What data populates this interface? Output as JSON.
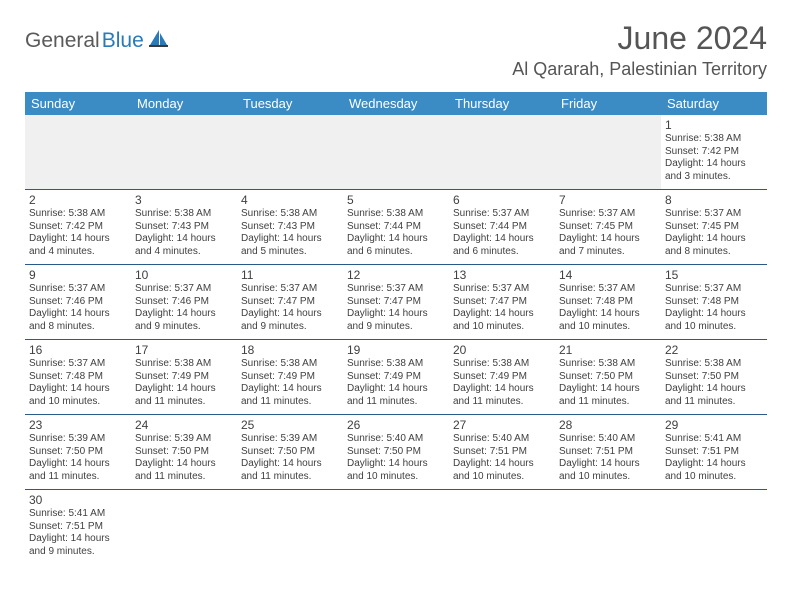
{
  "logo": {
    "general": "General",
    "blue": "Blue"
  },
  "title": "June 2024",
  "location": "Al Qararah, Palestinian Territory",
  "colors": {
    "header_bg": "#3b8bc4",
    "header_text": "#ffffff",
    "border": "#2a5a8a",
    "text": "#404040",
    "logo_gray": "#5a5a5a",
    "logo_blue": "#2a7ab8"
  },
  "days_of_week": [
    "Sunday",
    "Monday",
    "Tuesday",
    "Wednesday",
    "Thursday",
    "Friday",
    "Saturday"
  ],
  "weeks": [
    [
      null,
      null,
      null,
      null,
      null,
      null,
      {
        "n": "1",
        "sr": "Sunrise: 5:38 AM",
        "ss": "Sunset: 7:42 PM",
        "dl": "Daylight: 14 hours and 3 minutes."
      }
    ],
    [
      {
        "n": "2",
        "sr": "Sunrise: 5:38 AM",
        "ss": "Sunset: 7:42 PM",
        "dl": "Daylight: 14 hours and 4 minutes."
      },
      {
        "n": "3",
        "sr": "Sunrise: 5:38 AM",
        "ss": "Sunset: 7:43 PM",
        "dl": "Daylight: 14 hours and 4 minutes."
      },
      {
        "n": "4",
        "sr": "Sunrise: 5:38 AM",
        "ss": "Sunset: 7:43 PM",
        "dl": "Daylight: 14 hours and 5 minutes."
      },
      {
        "n": "5",
        "sr": "Sunrise: 5:38 AM",
        "ss": "Sunset: 7:44 PM",
        "dl": "Daylight: 14 hours and 6 minutes."
      },
      {
        "n": "6",
        "sr": "Sunrise: 5:37 AM",
        "ss": "Sunset: 7:44 PM",
        "dl": "Daylight: 14 hours and 6 minutes."
      },
      {
        "n": "7",
        "sr": "Sunrise: 5:37 AM",
        "ss": "Sunset: 7:45 PM",
        "dl": "Daylight: 14 hours and 7 minutes."
      },
      {
        "n": "8",
        "sr": "Sunrise: 5:37 AM",
        "ss": "Sunset: 7:45 PM",
        "dl": "Daylight: 14 hours and 8 minutes."
      }
    ],
    [
      {
        "n": "9",
        "sr": "Sunrise: 5:37 AM",
        "ss": "Sunset: 7:46 PM",
        "dl": "Daylight: 14 hours and 8 minutes."
      },
      {
        "n": "10",
        "sr": "Sunrise: 5:37 AM",
        "ss": "Sunset: 7:46 PM",
        "dl": "Daylight: 14 hours and 9 minutes."
      },
      {
        "n": "11",
        "sr": "Sunrise: 5:37 AM",
        "ss": "Sunset: 7:47 PM",
        "dl": "Daylight: 14 hours and 9 minutes."
      },
      {
        "n": "12",
        "sr": "Sunrise: 5:37 AM",
        "ss": "Sunset: 7:47 PM",
        "dl": "Daylight: 14 hours and 9 minutes."
      },
      {
        "n": "13",
        "sr": "Sunrise: 5:37 AM",
        "ss": "Sunset: 7:47 PM",
        "dl": "Daylight: 14 hours and 10 minutes."
      },
      {
        "n": "14",
        "sr": "Sunrise: 5:37 AM",
        "ss": "Sunset: 7:48 PM",
        "dl": "Daylight: 14 hours and 10 minutes."
      },
      {
        "n": "15",
        "sr": "Sunrise: 5:37 AM",
        "ss": "Sunset: 7:48 PM",
        "dl": "Daylight: 14 hours and 10 minutes."
      }
    ],
    [
      {
        "n": "16",
        "sr": "Sunrise: 5:37 AM",
        "ss": "Sunset: 7:48 PM",
        "dl": "Daylight: 14 hours and 10 minutes."
      },
      {
        "n": "17",
        "sr": "Sunrise: 5:38 AM",
        "ss": "Sunset: 7:49 PM",
        "dl": "Daylight: 14 hours and 11 minutes."
      },
      {
        "n": "18",
        "sr": "Sunrise: 5:38 AM",
        "ss": "Sunset: 7:49 PM",
        "dl": "Daylight: 14 hours and 11 minutes."
      },
      {
        "n": "19",
        "sr": "Sunrise: 5:38 AM",
        "ss": "Sunset: 7:49 PM",
        "dl": "Daylight: 14 hours and 11 minutes."
      },
      {
        "n": "20",
        "sr": "Sunrise: 5:38 AM",
        "ss": "Sunset: 7:49 PM",
        "dl": "Daylight: 14 hours and 11 minutes."
      },
      {
        "n": "21",
        "sr": "Sunrise: 5:38 AM",
        "ss": "Sunset: 7:50 PM",
        "dl": "Daylight: 14 hours and 11 minutes."
      },
      {
        "n": "22",
        "sr": "Sunrise: 5:38 AM",
        "ss": "Sunset: 7:50 PM",
        "dl": "Daylight: 14 hours and 11 minutes."
      }
    ],
    [
      {
        "n": "23",
        "sr": "Sunrise: 5:39 AM",
        "ss": "Sunset: 7:50 PM",
        "dl": "Daylight: 14 hours and 11 minutes."
      },
      {
        "n": "24",
        "sr": "Sunrise: 5:39 AM",
        "ss": "Sunset: 7:50 PM",
        "dl": "Daylight: 14 hours and 11 minutes."
      },
      {
        "n": "25",
        "sr": "Sunrise: 5:39 AM",
        "ss": "Sunset: 7:50 PM",
        "dl": "Daylight: 14 hours and 11 minutes."
      },
      {
        "n": "26",
        "sr": "Sunrise: 5:40 AM",
        "ss": "Sunset: 7:50 PM",
        "dl": "Daylight: 14 hours and 10 minutes."
      },
      {
        "n": "27",
        "sr": "Sunrise: 5:40 AM",
        "ss": "Sunset: 7:51 PM",
        "dl": "Daylight: 14 hours and 10 minutes."
      },
      {
        "n": "28",
        "sr": "Sunrise: 5:40 AM",
        "ss": "Sunset: 7:51 PM",
        "dl": "Daylight: 14 hours and 10 minutes."
      },
      {
        "n": "29",
        "sr": "Sunrise: 5:41 AM",
        "ss": "Sunset: 7:51 PM",
        "dl": "Daylight: 14 hours and 10 minutes."
      }
    ],
    [
      {
        "n": "30",
        "sr": "Sunrise: 5:41 AM",
        "ss": "Sunset: 7:51 PM",
        "dl": "Daylight: 14 hours and 9 minutes."
      },
      null,
      null,
      null,
      null,
      null,
      null
    ]
  ]
}
